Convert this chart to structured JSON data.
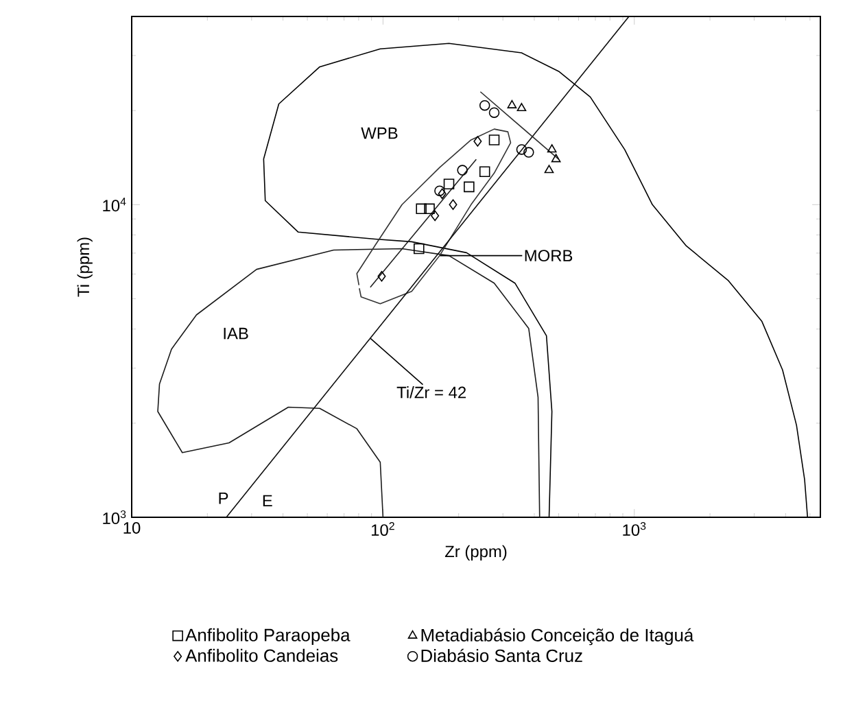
{
  "chart_data": {
    "type": "scatter",
    "xlabel": "Zr (ppm)",
    "ylabel": "Ti (ppm)",
    "log": "xy",
    "xlim": [
      10,
      5500
    ],
    "ylim": [
      1000,
      40000
    ],
    "xticks": [
      10,
      {
        "value": 100,
        "label": "10$^{2}$"
      },
      {
        "value": 1000,
        "label": "10$^{3}$"
      }
    ],
    "yticks": [
      {
        "value": 1000,
        "label": "10$^{3}$"
      },
      {
        "value": 10000,
        "label": "10$^{4}$"
      }
    ],
    "legend": "bottom",
    "series": [
      {
        "name": "Anfibolito Paraopeba",
        "marker": "square",
        "color": "#000000",
        "x": [
          142,
          153,
          183,
          220,
          254,
          277,
          139
        ],
        "values": [
          9700,
          9700,
          11640,
          11400,
          12750,
          16110,
          7230
        ]
      },
      {
        "name": "Metadiabásio Conceição de Itaguá",
        "marker": "triangle",
        "color": "#000000",
        "x": [
          326,
          356,
          470,
          488,
          458
        ],
        "values": [
          20770,
          20340,
          15010,
          13970,
          12890
        ]
      },
      {
        "name": "Anfibolito Candeias",
        "marker": "diamond",
        "color": "#000000",
        "x": [
          98.8,
          161,
          190,
          172,
          238
        ],
        "values": [
          5900,
          9220,
          10000,
          10840,
          15940
        ]
      },
      {
        "name": "Diabásio Santa Cruz",
        "marker": "circle",
        "color": "#000000",
        "x": [
          254,
          277,
          356,
          380,
          207,
          168
        ],
        "values": [
          20770,
          19700,
          15010,
          14700,
          12890,
          11070
        ]
      },
      {
        "type": "line",
        "marker": "none",
        "color": "#000000",
        "x": [
          458,
          470,
          447,
          335,
          215,
          130,
          93,
          46,
          34,
          33.5,
          38.5,
          56,
          97.5,
          183,
          356,
          500,
          668,
          916,
          1180,
          1610,
          2360,
          3220,
          3890,
          4420,
          4760,
          4890
        ],
        "values": [
          1000,
          2180,
          3810,
          5610,
          7020,
          7610,
          7760,
          8170,
          10300,
          14000,
          21000,
          27600,
          31500,
          32800,
          30600,
          26700,
          22100,
          15000,
          10000,
          7380,
          5730,
          4230,
          2960,
          1970,
          1320,
          1000
        ]
      },
      {
        "type": "line",
        "marker": "none",
        "color": "#1a1a1a",
        "x": [
          100,
          97.5,
          78.7,
          56,
          42,
          24.4,
          15.9,
          12.7,
          12.9,
          14.4,
          18.1,
          31.4,
          63.6,
          119,
          183,
          277,
          380,
          414,
          420
        ],
        "values": [
          1000,
          1500,
          1920,
          2230,
          2250,
          1730,
          1610,
          2180,
          2670,
          3450,
          4440,
          6210,
          7160,
          7230,
          6870,
          5610,
          4020,
          2420,
          1000
        ]
      },
      {
        "type": "line",
        "marker": "none",
        "color": "#333333",
        "x": [
          80.2,
          78.7,
          92.7,
          119,
          168,
          224,
          277,
          314,
          322,
          277,
          224,
          168,
          130,
          97.5,
          81.8,
          80.5
        ],
        "values": [
          5530,
          6020,
          7380,
          10000,
          13150,
          16110,
          17450,
          17100,
          15780,
          12620,
          10000,
          6870,
          5280,
          4820,
          5070,
          5400
        ]
      },
      {
        "type": "line",
        "marker": "none",
        "color": "#0d0d0d",
        "x": [
          23.8,
          952
        ],
        "values": [
          1000,
          40000
        ]
      },
      {
        "type": "line",
        "marker": "none",
        "color": "#202020",
        "x": [
          89,
          235
        ],
        "values": [
          5440,
          13970
        ]
      },
      {
        "type": "line",
        "marker": "none",
        "color": "#2d2d2d",
        "x": [
          244,
          500
        ],
        "values": [
          22970,
          13970
        ]
      }
    ],
    "annotations": [
      "WPB",
      {
        "text": "MORB",
        "x": 168,
        "y": 6870
      },
      "IAB",
      {
        "text": "Ti/Zr = 42",
        "x": 89,
        "y": 3738
      },
      "P",
      "E"
    ]
  }
}
